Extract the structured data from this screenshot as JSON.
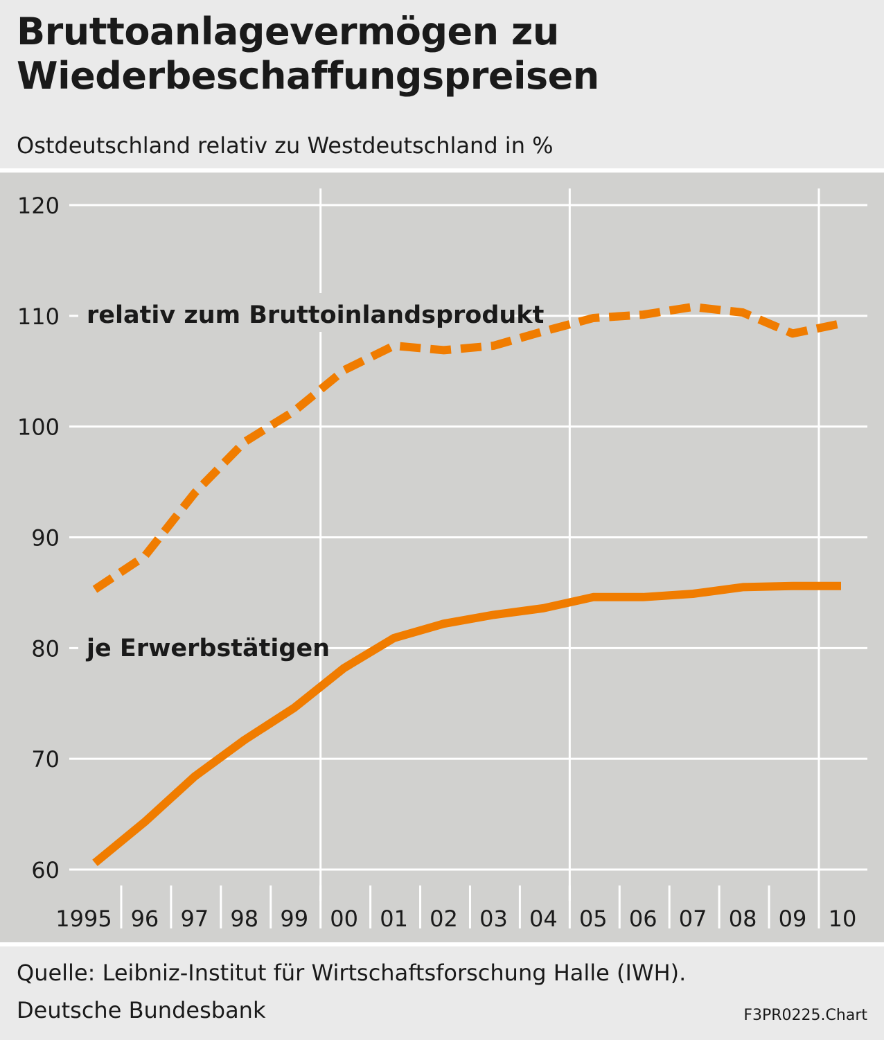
{
  "header": {
    "title_line1": "Bruttoanlagevermögen zu",
    "title_line2": "Wiederbeschaffungspreisen",
    "subtitle": "Ostdeutschland relativ zu Westdeutschland in %"
  },
  "footer": {
    "source_line1": "Quelle: Leibniz-Institut für Wirtschaftsforschung Halle (IWH).",
    "source_line2": "Deutsche Bundesbank",
    "credit": "F3PR0225.Chart"
  },
  "colors": {
    "line": "#f07c00",
    "plot_bg": "#d1d1cf",
    "page_bg": "#eaeaea",
    "grid": "#ffffff"
  },
  "chart_data": {
    "type": "line",
    "title": "Bruttoanlagevermögen zu Wiederbeschaffungspreisen",
    "subtitle": "Ostdeutschland relativ zu Westdeutschland in %",
    "x": [
      "1995",
      "96",
      "97",
      "98",
      "99",
      "00",
      "01",
      "02",
      "03",
      "04",
      "05",
      "06",
      "07",
      "08",
      "09",
      "10"
    ],
    "ylim": [
      60,
      120
    ],
    "yticks": [
      60,
      70,
      80,
      90,
      100,
      110,
      120
    ],
    "grid": true,
    "series": [
      {
        "name": "relativ zum Bruttoinlandsprodukt",
        "style": "dashed",
        "values": [
          85.3,
          88.3,
          94.0,
          98.6,
          101.4,
          105.1,
          107.3,
          106.9,
          107.3,
          108.6,
          109.8,
          110.1,
          110.8,
          110.3,
          108.4,
          109.3
        ]
      },
      {
        "name": "je Erwerbstätigen",
        "style": "solid",
        "values": [
          60.6,
          64.3,
          68.4,
          71.7,
          74.6,
          78.2,
          80.9,
          82.2,
          83.0,
          83.6,
          84.6,
          84.6,
          84.9,
          85.5,
          85.6,
          85.6
        ]
      }
    ]
  }
}
